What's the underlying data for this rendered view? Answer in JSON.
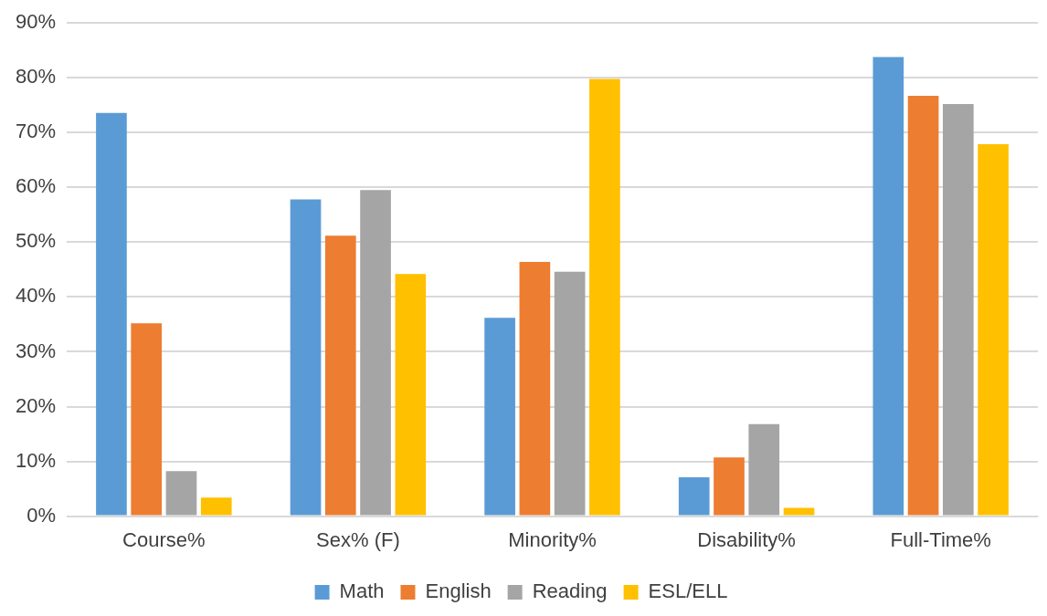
{
  "chart_data": {
    "type": "bar",
    "categories": [
      "Course%",
      "Sex% (F)",
      "Minority%",
      "Disability%",
      "Full-Time%"
    ],
    "series": [
      {
        "name": "Math",
        "color": "#5b9bd5",
        "values": [
          73.6,
          57.8,
          36.2,
          7.1,
          83.8
        ]
      },
      {
        "name": "English",
        "color": "#ed7d31",
        "values": [
          35.2,
          51.2,
          46.4,
          10.7,
          76.7
        ]
      },
      {
        "name": "Reading",
        "color": "#a5a5a5",
        "values": [
          8.2,
          59.5,
          44.6,
          16.8,
          75.2
        ]
      },
      {
        "name": "ESL/ELL",
        "color": "#ffc000",
        "values": [
          3.4,
          44.2,
          79.8,
          1.5,
          67.9
        ]
      }
    ],
    "ylim": [
      0,
      90
    ],
    "yticks": [
      {
        "value": 0,
        "label": "0%"
      },
      {
        "value": 10,
        "label": "10%"
      },
      {
        "value": 20,
        "label": "20%"
      },
      {
        "value": 30,
        "label": "30%"
      },
      {
        "value": 40,
        "label": "40%"
      },
      {
        "value": 50,
        "label": "50%"
      },
      {
        "value": 60,
        "label": "60%"
      },
      {
        "value": 70,
        "label": "70%"
      },
      {
        "value": 80,
        "label": "80%"
      },
      {
        "value": 90,
        "label": "90%"
      }
    ],
    "grid": "y",
    "legend": "bottom"
  }
}
